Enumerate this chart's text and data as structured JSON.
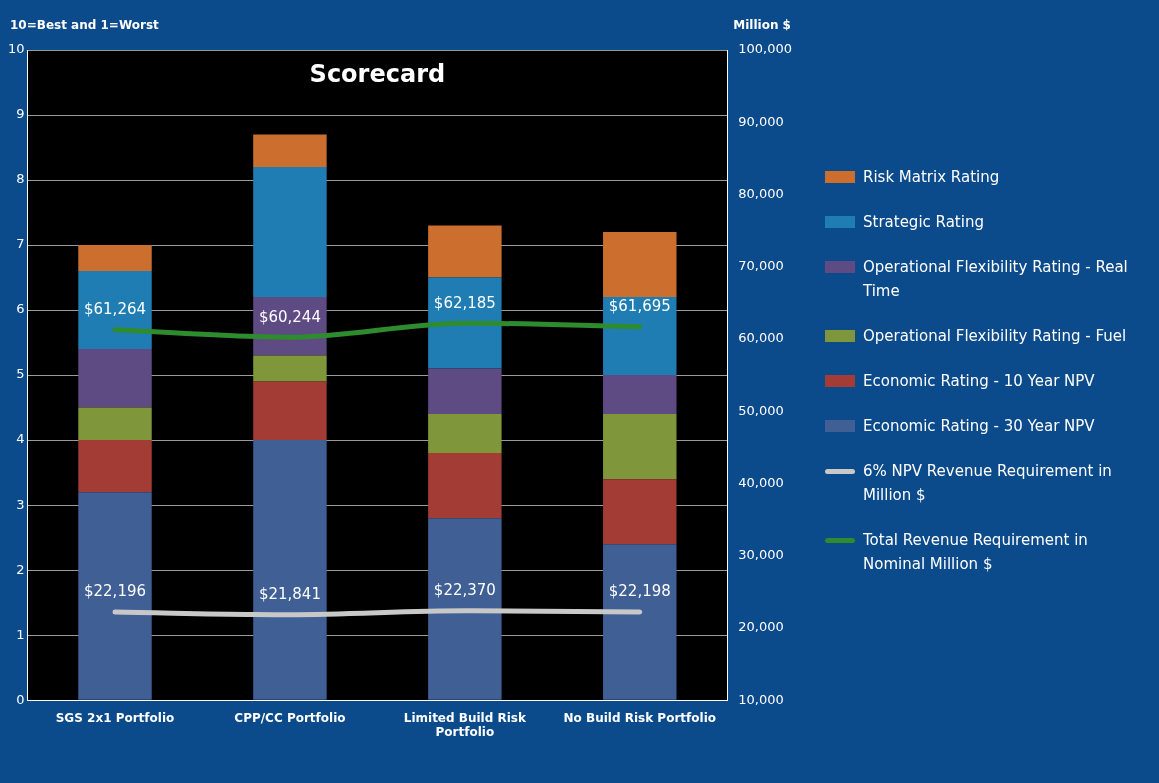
{
  "chart_data": {
    "type": "bar",
    "title": "Scorecard",
    "ylabel": "10=Best and 1=Worst",
    "y2label": "Million $",
    "categories": [
      "SGS 2x1 Portfolio",
      "CPP/CC Portfolio",
      "Limited Build Risk Portfolio",
      "No Build Risk Portfolio"
    ],
    "stacked": true,
    "grid": "y",
    "legend": "right",
    "ylim": [
      0,
      10
    ],
    "yticks": [
      0,
      1,
      2,
      3,
      4,
      5,
      6,
      7,
      8,
      9,
      10
    ],
    "y2lim": [
      10000,
      100000
    ],
    "y2ticks": [
      {
        "value": 10000,
        "label": "10,000"
      },
      {
        "value": 20000,
        "label": "20,000"
      },
      {
        "value": 30000,
        "label": "30,000"
      },
      {
        "value": 40000,
        "label": "40,000"
      },
      {
        "value": 50000,
        "label": "50,000"
      },
      {
        "value": 60000,
        "label": "60,000"
      },
      {
        "value": 70000,
        "label": "70,000"
      },
      {
        "value": 80000,
        "label": "80,000"
      },
      {
        "value": 90000,
        "label": "90,000"
      },
      {
        "value": 100000,
        "label": "100,000"
      }
    ],
    "series": [
      {
        "name": "Economic Rating - 30 Year NPV",
        "color": "#3f5f95",
        "values": [
          3.2,
          4.0,
          2.8,
          2.4
        ]
      },
      {
        "name": "Economic Rating - 10 Year NPV",
        "color": "#a33c35",
        "values": [
          0.8,
          0.9,
          1.0,
          1.0
        ]
      },
      {
        "name": "Operational Flexibility Rating - Fuel",
        "color": "#7f963a",
        "values": [
          0.5,
          0.4,
          0.6,
          1.0
        ]
      },
      {
        "name": "Operational Flexibility Rating - Real Time",
        "color": "#5e4b84",
        "values": [
          0.9,
          0.9,
          0.7,
          0.6
        ]
      },
      {
        "name": "Strategic Rating",
        "color": "#1f7db3",
        "values": [
          1.2,
          2.0,
          1.4,
          1.2
        ]
      },
      {
        "name": "Risk Matrix Rating",
        "color": "#cc6f2e",
        "values": [
          0.4,
          0.5,
          0.8,
          1.0
        ]
      },
      {
        "name": "6% NPV Revenue Requirement in Million $",
        "type": "line",
        "axis": "y2",
        "color": "#c8c8c8",
        "values": [
          22196,
          21841,
          22370,
          22198
        ],
        "value_labels": [
          "$22,196",
          "$21,841",
          "$22,370",
          "$22,198"
        ]
      },
      {
        "name": "Total Revenue Requirement in Nominal Million $",
        "type": "line",
        "axis": "y2",
        "color": "#2e8b2e",
        "values": [
          61264,
          60244,
          62185,
          61695
        ],
        "value_labels": [
          "$61,264",
          "$60,244",
          "$62,185",
          "$61,695"
        ]
      }
    ]
  }
}
